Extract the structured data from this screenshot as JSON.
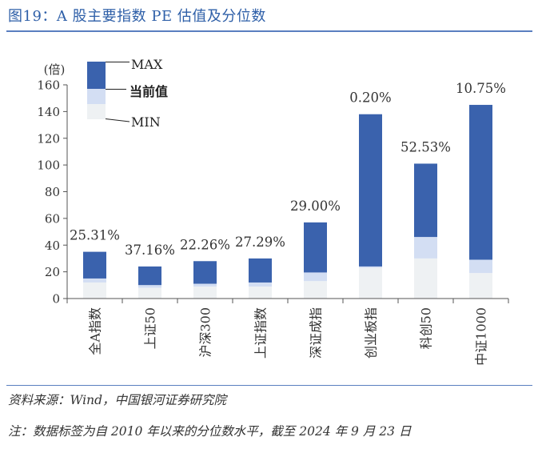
{
  "figure": {
    "title": "图19：A 股主要指数 PE 估值及分位数",
    "source": "资料来源：Wind，中国银河证券研究院",
    "note": "注：数据标签为自 2010 年以来的分位数水平，截至 2024 年 9 月 23 日"
  },
  "colors": {
    "max": "#3a62ad",
    "current": "#d3def3",
    "min": "#eef1f3",
    "title": "#2e5fa8",
    "axis": "#555555"
  },
  "chart_data": {
    "type": "bar",
    "stacked": true,
    "title": "",
    "ylabel": "(倍)",
    "ylim": [
      0,
      160
    ],
    "yticks": [
      0,
      20,
      40,
      60,
      80,
      100,
      120,
      140,
      160
    ],
    "categories": [
      "全A指数",
      "上证50",
      "沪深300",
      "上证指数",
      "深证成指",
      "创业板指",
      "科创50",
      "中证1000"
    ],
    "min": [
      12,
      8,
      9,
      9,
      13,
      23,
      30,
      19
    ],
    "current": [
      15,
      10,
      11,
      12,
      19.5,
      24,
      46,
      29
    ],
    "max": [
      35,
      24,
      28,
      30,
      57,
      138,
      101,
      145
    ],
    "percentile_labels": [
      "25.31%",
      "37.16%",
      "22.26%",
      "27.29%",
      "29.00%",
      "0.20%",
      "52.53%",
      "10.75%"
    ],
    "legend": [
      "MAX",
      "当前值",
      "MIN"
    ]
  }
}
